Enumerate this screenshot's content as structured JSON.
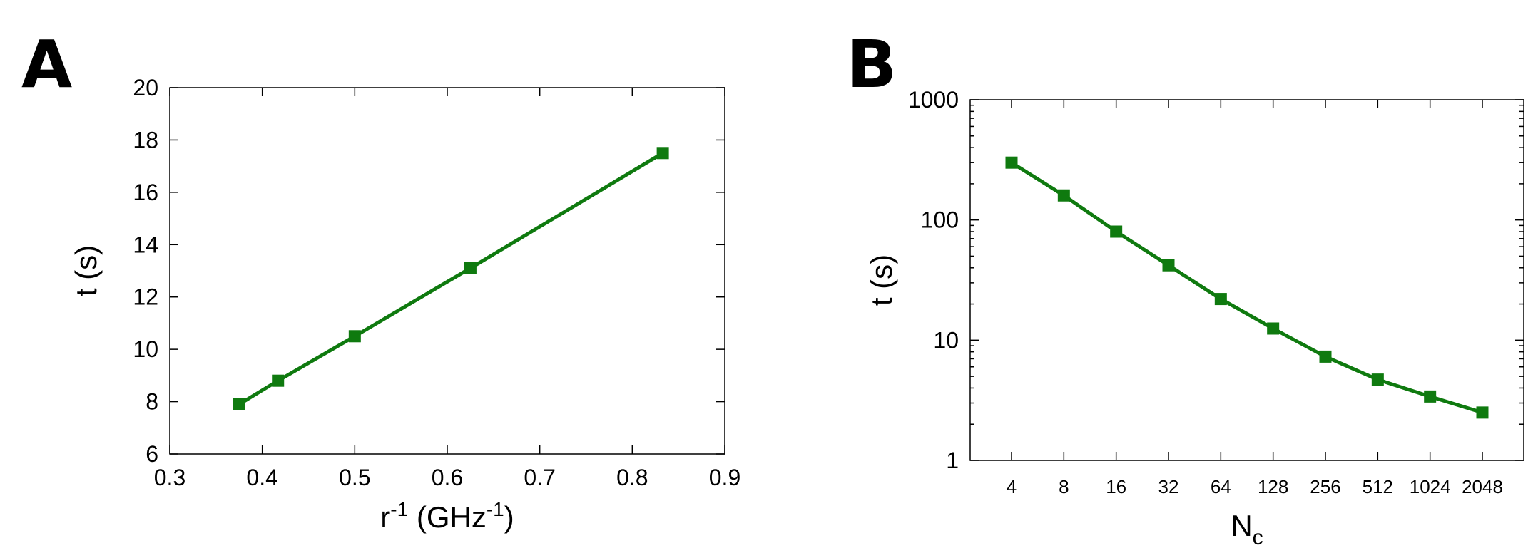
{
  "chart_data": [
    {
      "panel_label": "A",
      "type": "line",
      "x": [
        0.375,
        0.417,
        0.5,
        0.625,
        0.833
      ],
      "series": [
        {
          "values": [
            7.9,
            8.8,
            10.5,
            13.1,
            17.5
          ],
          "color": "#0f7a0f",
          "marker": "square"
        }
      ],
      "xlabel": {
        "base": "r",
        "sup": "-1",
        "mid": " (GHz",
        "sup2": "-1",
        "end": ")"
      },
      "ylabel": "t (s)",
      "xlim": [
        0.3,
        0.9
      ],
      "ylim": [
        6,
        20
      ],
      "xticks": [
        0.3,
        0.4,
        0.5,
        0.6,
        0.7,
        0.8,
        0.9
      ],
      "xtick_labels": [
        "0.3",
        "0.4",
        "0.5",
        "0.6",
        "0.7",
        "0.8",
        "0.9"
      ],
      "yticks": [
        6,
        8,
        10,
        12,
        14,
        16,
        18,
        20
      ],
      "ytick_labels": [
        "6",
        "8",
        "10",
        "12",
        "14",
        "16",
        "18",
        "20"
      ],
      "grid": false,
      "legend": "none"
    },
    {
      "panel_label": "B",
      "type": "line",
      "x_scale": "log2",
      "y_scale": "log",
      "x": [
        4,
        8,
        16,
        32,
        64,
        128,
        256,
        512,
        1024,
        2048
      ],
      "series": [
        {
          "values": [
            300,
            160,
            80,
            42,
            22,
            12.5,
            7.3,
            4.7,
            3.4,
            2.5
          ],
          "color": "#0f7a0f",
          "marker": "square"
        }
      ],
      "xlabel": {
        "base": "N",
        "sub": "c"
      },
      "ylabel": "t (s)",
      "ylim": [
        1,
        1000
      ],
      "xtick_labels": [
        "4",
        "8",
        "16",
        "32",
        "64",
        "128",
        "256",
        "512",
        "1024",
        "2048"
      ],
      "yticks": [
        1,
        10,
        100,
        1000
      ],
      "ytick_labels": [
        "1",
        "10",
        "100",
        "1000"
      ],
      "grid": false,
      "legend": "none"
    }
  ]
}
